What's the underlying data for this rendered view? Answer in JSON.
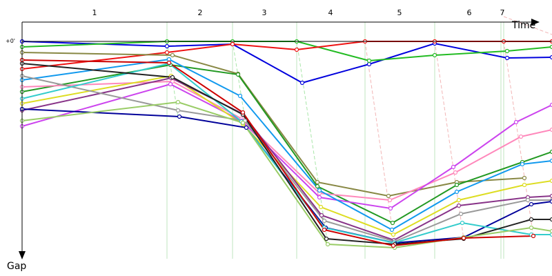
{
  "chart_data": {
    "type": "line",
    "x_label": "Time",
    "y_label": "Gap",
    "xlim": [
      0,
      768
    ],
    "ylim": [
      -28,
      315
    ],
    "xticks": [
      {
        "value": 105,
        "label": "1"
      },
      {
        "value": 258,
        "label": "2"
      },
      {
        "value": 351,
        "label": "3"
      },
      {
        "value": 447,
        "label": "4"
      },
      {
        "value": 547,
        "label": "5"
      },
      {
        "value": 648,
        "label": "6"
      },
      {
        "value": 696,
        "label": "7"
      }
    ],
    "yticks": [
      {
        "value": 0,
        "label": "+0'"
      }
    ],
    "series": [
      {
        "color": "#0000dd",
        "x": [
          0,
          210,
          305,
          406,
          503,
          598,
          703,
          768
        ],
        "values": [
          0,
          7,
          4,
          60,
          33,
          3,
          24,
          23
        ]
      },
      {
        "color": "#22bb22",
        "x": [
          0,
          210,
          305,
          398,
          503,
          598,
          703,
          768
        ],
        "values": [
          8,
          0,
          0,
          0,
          28,
          20,
          14,
          8
        ]
      },
      {
        "color": "#ee1111",
        "x": [
          0,
          210,
          305,
          398,
          497,
          598,
          698,
          768
        ],
        "values": [
          40,
          16,
          4,
          12,
          0,
          0,
          0,
          0
        ]
      },
      {
        "color": "#888844",
        "x": [
          0,
          218,
          313,
          428,
          531,
          630,
          728
        ],
        "values": [
          16,
          20,
          47,
          204,
          224,
          204,
          198
        ]
      },
      {
        "color": "#229922",
        "x": [
          0,
          215,
          313,
          428,
          537,
          630,
          725,
          768
        ],
        "values": [
          73,
          34,
          48,
          210,
          263,
          208,
          175,
          160
        ]
      },
      {
        "color": "#ff88bb",
        "x": [
          0,
          218,
          318,
          431,
          533,
          628,
          723,
          768
        ],
        "values": [
          66,
          58,
          112,
          220,
          230,
          190,
          138,
          128
        ]
      },
      {
        "color": "#cc44ee",
        "x": [
          0,
          215,
          318,
          431,
          534,
          625,
          716,
          768
        ],
        "values": [
          123,
          62,
          115,
          226,
          242,
          182,
          117,
          92
        ]
      },
      {
        "color": "#1199ee",
        "x": [
          0,
          213,
          316,
          431,
          536,
          630,
          725,
          768
        ],
        "values": [
          56,
          26,
          79,
          216,
          273,
          218,
          178,
          173
        ]
      },
      {
        "color": "#dddd22",
        "x": [
          0,
          216,
          320,
          433,
          538,
          633,
          728,
          768
        ],
        "values": [
          90,
          50,
          120,
          240,
          280,
          230,
          208,
          202
        ]
      },
      {
        "color": "#883388",
        "x": [
          0,
          216,
          320,
          434,
          539,
          633,
          733,
          768
        ],
        "values": [
          100,
          53,
          105,
          252,
          288,
          238,
          226,
          224
        ]
      },
      {
        "color": "#999999",
        "x": [
          0,
          226,
          323,
          438,
          540,
          636,
          733,
          768
        ],
        "values": [
          50,
          100,
          115,
          260,
          290,
          250,
          230,
          230
        ]
      },
      {
        "color": "#000099",
        "x": [
          0,
          228,
          325,
          440,
          540,
          640,
          738,
          768
        ],
        "values": [
          98,
          109,
          125,
          270,
          292,
          284,
          236,
          232
        ]
      },
      {
        "color": "#33cccc",
        "x": [
          0,
          213,
          318,
          438,
          539,
          638,
          738,
          768
        ],
        "values": [
          83,
          32,
          116,
          270,
          292,
          263,
          280,
          280
        ]
      },
      {
        "color": "#222222",
        "x": [
          0,
          218,
          320,
          441,
          540,
          640,
          738,
          768
        ],
        "values": [
          32,
          52,
          106,
          286,
          294,
          286,
          258,
          258
        ]
      },
      {
        "color": "#99cc66",
        "x": [
          0,
          226,
          320,
          443,
          540,
          640,
          738,
          768
        ],
        "values": [
          115,
          88,
          118,
          294,
          299,
          284,
          270,
          275
        ]
      },
      {
        "color": "#cc0000",
        "x": [
          0,
          213,
          320,
          438,
          538,
          640,
          741
        ],
        "values": [
          27,
          31,
          103,
          273,
          296,
          285,
          282
        ]
      }
    ]
  }
}
